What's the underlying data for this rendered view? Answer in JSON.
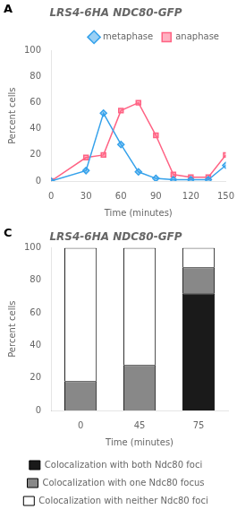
{
  "chart_data": [
    {
      "type": "line",
      "title": "LRS4-6HA NDC80-GFP",
      "annotations": [
        "A"
      ],
      "xlabel": "Time (minutes)",
      "ylabel": "Percent cells",
      "x": [
        0,
        30,
        45,
        60,
        75,
        90,
        105,
        120,
        135,
        150
      ],
      "series": [
        {
          "name": "metaphase",
          "marker": "diamond",
          "values": [
            0,
            8,
            52,
            28,
            7,
            2,
            1,
            1,
            1,
            12
          ]
        },
        {
          "name": "anaphase",
          "marker": "square",
          "values": [
            0,
            18,
            20,
            54,
            60,
            35,
            5,
            3,
            3,
            20
          ]
        }
      ],
      "xlim": [
        0,
        150
      ],
      "ylim": [
        0,
        100
      ],
      "xticks": [
        0,
        30,
        60,
        90,
        120,
        150
      ],
      "yticks": [
        0,
        20,
        40,
        60,
        80,
        100
      ],
      "grid": false,
      "legend": "upper right"
    },
    {
      "type": "bar",
      "stacked": true,
      "title": "LRS4-6HA NDC80-GFP",
      "annotations": [
        "C"
      ],
      "xlabel": "Time (minutes)",
      "ylabel": "Percent cells",
      "categories": [
        "0",
        "45",
        "75"
      ],
      "series": [
        {
          "name": "Colocalization with both Ndc80 foci",
          "color": "#1a1a1a",
          "values": [
            0,
            0,
            72
          ]
        },
        {
          "name": "Colocalization with one Ndc80 focus",
          "color": "#888888",
          "values": [
            18,
            28,
            16
          ]
        },
        {
          "name": "Colocalization with neither Ndc80 foci",
          "color": "#ffffff",
          "values": [
            82,
            72,
            12
          ]
        }
      ],
      "ylim": [
        0,
        100
      ],
      "yticks": [
        0,
        20,
        40,
        60,
        80,
        100
      ],
      "grid": false,
      "legend": "lower center"
    }
  ]
}
